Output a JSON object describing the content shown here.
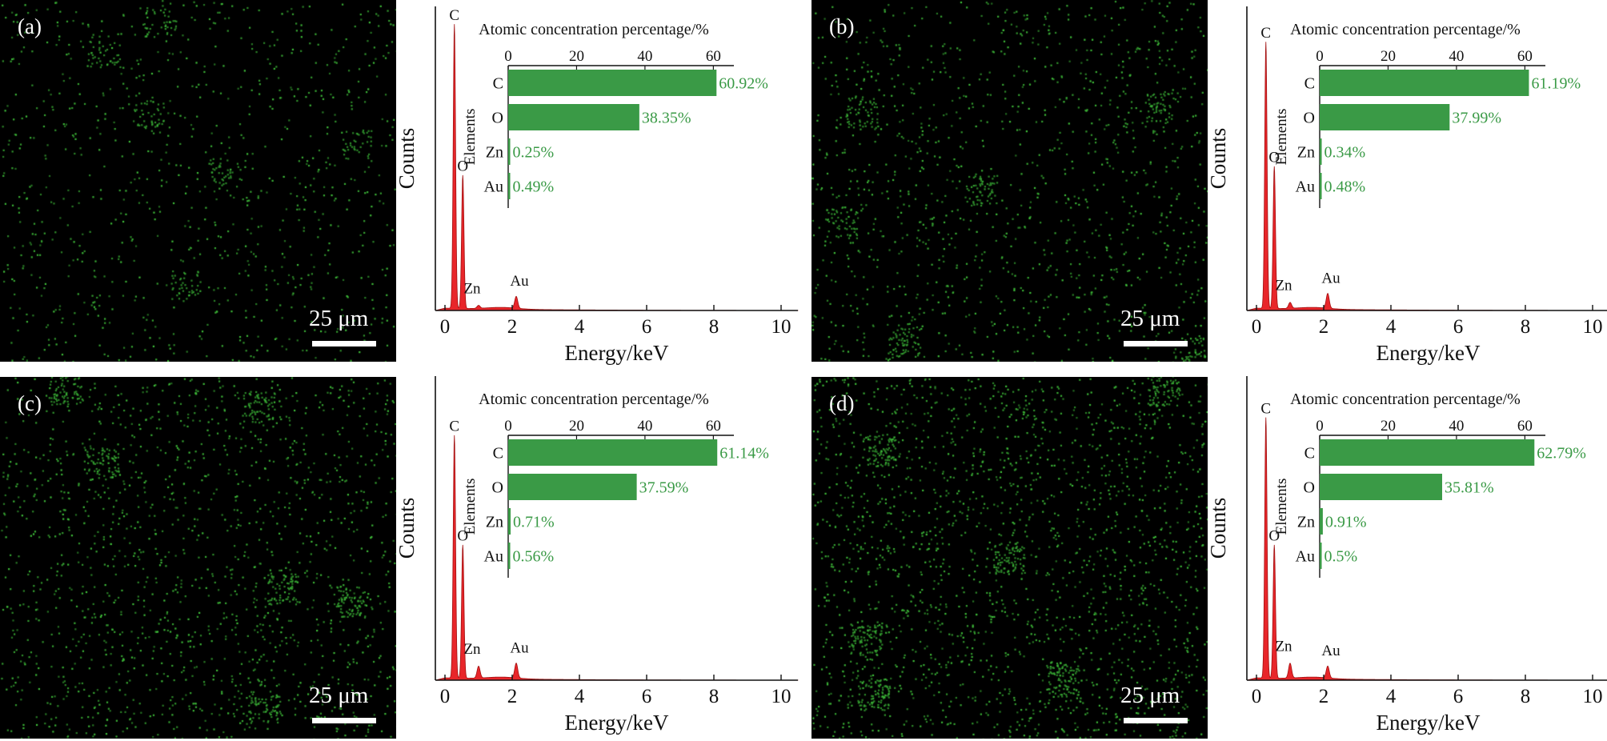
{
  "panels": [
    {
      "label": "(a)",
      "scale_bar": "25 μm",
      "chart_data": {
        "type": "bar",
        "title": "Atomic concentration percentage/%",
        "ylabel": "Elements",
        "categories": [
          "C",
          "O",
          "Zn",
          "Au"
        ],
        "values": [
          60.92,
          38.35,
          0.25,
          0.49
        ],
        "value_labels": [
          "60.92%",
          "38.35%",
          "0.25%",
          "0.49%"
        ],
        "xlim": [
          0,
          66
        ],
        "xticks": [
          0,
          20,
          40,
          60
        ],
        "bar_color": "#3a9a46"
      },
      "spectrum": {
        "type": "area",
        "xlabel": "Energy/keV",
        "ylabel": "Counts",
        "xlim": [
          0,
          10.5
        ],
        "xticks": [
          0,
          2,
          4,
          6,
          8,
          10
        ],
        "fill_color": "#e8262a",
        "peaks": [
          {
            "label": "C",
            "energy": 0.28,
            "height": 0.96
          },
          {
            "label": "O",
            "energy": 0.53,
            "height": 0.45
          },
          {
            "label": "Zn",
            "energy": 1.0,
            "height": 0.01
          },
          {
            "label": "Au",
            "energy": 2.12,
            "height": 0.04
          }
        ]
      }
    },
    {
      "label": "(b)",
      "scale_bar": "25 μm",
      "chart_data": {
        "type": "bar",
        "title": "Atomic concentration percentage/%",
        "ylabel": "Elements",
        "categories": [
          "C",
          "O",
          "Zn",
          "Au"
        ],
        "values": [
          61.19,
          37.99,
          0.34,
          0.48
        ],
        "value_labels": [
          "61.19%",
          "37.99%",
          "0.34%",
          "0.48%"
        ],
        "xlim": [
          0,
          66
        ],
        "xticks": [
          0,
          20,
          40,
          60
        ],
        "bar_color": "#3a9a46"
      },
      "spectrum": {
        "type": "area",
        "xlabel": "Energy/keV",
        "ylabel": "Counts",
        "xlim": [
          0,
          10.5
        ],
        "xticks": [
          0,
          2,
          4,
          6,
          8,
          10
        ],
        "fill_color": "#e8262a",
        "peaks": [
          {
            "label": "C",
            "energy": 0.28,
            "height": 0.9
          },
          {
            "label": "O",
            "energy": 0.53,
            "height": 0.48
          },
          {
            "label": "Zn",
            "energy": 1.0,
            "height": 0.02
          },
          {
            "label": "Au",
            "energy": 2.12,
            "height": 0.05
          }
        ]
      }
    },
    {
      "label": "(c)",
      "scale_bar": "25 μm",
      "chart_data": {
        "type": "bar",
        "title": "Atomic concentration percentage/%",
        "ylabel": "Elements",
        "categories": [
          "C",
          "O",
          "Zn",
          "Au"
        ],
        "values": [
          61.14,
          37.59,
          0.71,
          0.56
        ],
        "value_labels": [
          "61.14%",
          "37.59%",
          "0.71%",
          "0.56%"
        ],
        "xlim": [
          0,
          66
        ],
        "xticks": [
          0,
          20,
          40,
          60
        ],
        "bar_color": "#3a9a46"
      },
      "spectrum": {
        "type": "area",
        "xlabel": "Energy/keV",
        "ylabel": "Counts",
        "xlim": [
          0,
          10.5
        ],
        "xticks": [
          0,
          2,
          4,
          6,
          8,
          10
        ],
        "fill_color": "#e8262a",
        "peaks": [
          {
            "label": "C",
            "energy": 0.28,
            "height": 0.82
          },
          {
            "label": "O",
            "energy": 0.53,
            "height": 0.45
          },
          {
            "label": "Zn",
            "energy": 1.0,
            "height": 0.04
          },
          {
            "label": "Au",
            "energy": 2.12,
            "height": 0.05
          }
        ]
      }
    },
    {
      "label": "(d)",
      "scale_bar": "25 μm",
      "chart_data": {
        "type": "bar",
        "title": "Atomic concentration percentage/%",
        "ylabel": "Elements",
        "categories": [
          "C",
          "O",
          "Zn",
          "Au"
        ],
        "values": [
          62.79,
          35.81,
          0.91,
          0.5
        ],
        "value_labels": [
          "62.79%",
          "35.81%",
          "0.91%",
          "0.5%"
        ],
        "xlim": [
          0,
          66
        ],
        "xticks": [
          0,
          20,
          40,
          60
        ],
        "bar_color": "#3a9a46"
      },
      "spectrum": {
        "type": "area",
        "xlabel": "Energy/keV",
        "ylabel": "Counts",
        "xlim": [
          0,
          10.5
        ],
        "xticks": [
          0,
          2,
          4,
          6,
          8,
          10
        ],
        "fill_color": "#e8262a",
        "peaks": [
          {
            "label": "C",
            "energy": 0.28,
            "height": 0.88
          },
          {
            "label": "O",
            "energy": 0.53,
            "height": 0.45
          },
          {
            "label": "Zn",
            "energy": 1.0,
            "height": 0.05
          },
          {
            "label": "Au",
            "energy": 2.12,
            "height": 0.04
          }
        ]
      }
    }
  ],
  "dot_color": "#3fbf3a"
}
